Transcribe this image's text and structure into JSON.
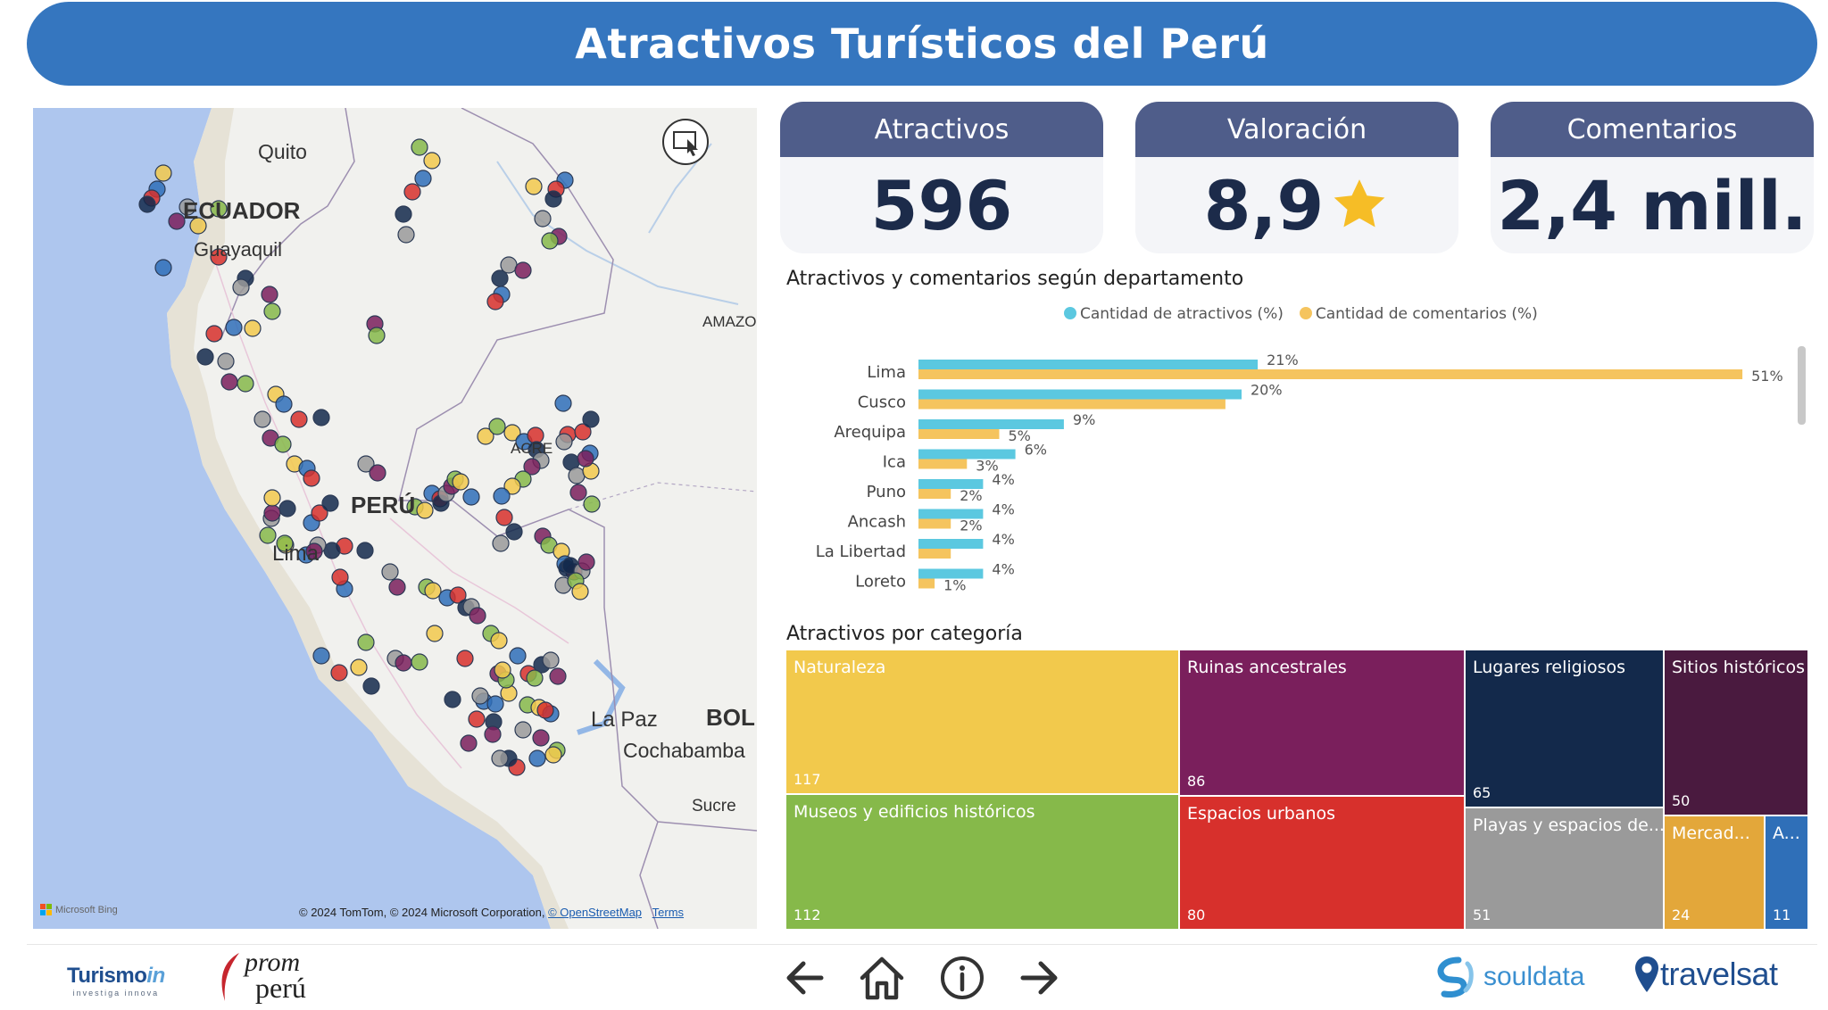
{
  "header": {
    "title": "Atractivos Turísticos del Perú"
  },
  "map": {
    "labels": {
      "quito": "Quito",
      "ecuador": "ECUADOR",
      "guayaquil": "Guayaquil",
      "peru": "PERÚ",
      "lima": "Lima",
      "acre": "ACRE",
      "amazonas": "AMAZO",
      "la_paz": "La Paz",
      "bolivia": "BOL",
      "cochabamba": "Cochabamba",
      "sucre": "Sucre"
    },
    "attribution_brand": "Microsoft Bing",
    "attribution": "© 2024 TomTom, © 2024 Microsoft Corporation,",
    "osm_link": "© OpenStreetMap",
    "terms_link": "Terms",
    "focus_icon": "focus-mode-icon"
  },
  "kpis": {
    "atractivos": {
      "label": "Atractivos",
      "value": "596"
    },
    "valoracion": {
      "label": "Valoración",
      "value": "8,9",
      "icon": "star-icon"
    },
    "comentarios": {
      "label": "Comentarios",
      "value": "2,4 mill."
    }
  },
  "bar_section": {
    "title": "Atractivos y comentarios según departamento",
    "legend": [
      "Cantidad de atractivos (%)",
      "Cantidad de comentarios (%)"
    ]
  },
  "chart_data": {
    "type": "bar",
    "orientation": "horizontal",
    "title": "Atractivos y comentarios según departamento",
    "categories": [
      "Lima",
      "Cusco",
      "Arequipa",
      "Ica",
      "Puno",
      "Ancash",
      "La Libertad",
      "Loreto"
    ],
    "series": [
      {
        "name": "Cantidad de atractivos (%)",
        "color": "#5bc8e0",
        "values": [
          21,
          20,
          9,
          6,
          4,
          4,
          4,
          4
        ]
      },
      {
        "name": "Cantidad de comentarios (%)",
        "color": "#f5c45e",
        "values": [
          51,
          19,
          5,
          3,
          2,
          2,
          2,
          1
        ]
      }
    ],
    "data_labels": [
      [
        "21%",
        "20%",
        "9%",
        "6%",
        "4%",
        "4%",
        "4%",
        "4%"
      ],
      [
        "51%",
        "",
        "5%",
        "3%",
        "2%",
        "2%",
        "",
        "1%"
      ]
    ],
    "legend": "top-center",
    "grid": false
  },
  "treemap": {
    "title": "Atractivos por categoría",
    "tiles": [
      {
        "name": "Naturaleza",
        "value": "117",
        "color": "#f2c94c"
      },
      {
        "name": "Museos y edificios históricos",
        "value": "112",
        "color": "#86b94a"
      },
      {
        "name": "Ruinas ancestrales",
        "value": "86",
        "color": "#7a1f5c"
      },
      {
        "name": "Espacios urbanos",
        "value": "80",
        "color": "#d7302c"
      },
      {
        "name": "Lugares religiosos",
        "value": "65",
        "color": "#13294b"
      },
      {
        "name": "Playas y espacios de...",
        "value": "51",
        "color": "#9a9a9a"
      },
      {
        "name": "Sitios históricos",
        "value": "50",
        "color": "#4a1a3f"
      },
      {
        "name": "Mercad...",
        "value": "24",
        "color": "#e3a73a"
      },
      {
        "name": "A...",
        "value": "11",
        "color": "#2f6fb8"
      }
    ]
  },
  "footer": {
    "logo_turismo": "Turismo",
    "logo_turismo_in": "in",
    "logo_turismo_tag": "investiga innova",
    "logo_prom": "prom",
    "logo_peru": "perú",
    "nav_icons": [
      "back-arrow-icon",
      "home-icon",
      "info-icon",
      "forward-arrow-icon"
    ],
    "logo_souldata": "souldata",
    "logo_travelsat": "travelsat"
  }
}
